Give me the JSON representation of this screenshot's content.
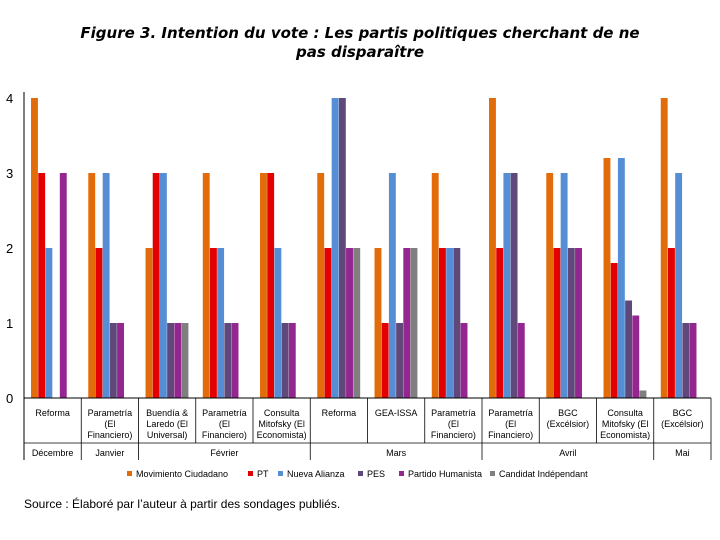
{
  "chart_data": {
    "type": "bar",
    "title": "Figure 3. Intention du vote : Les partis politiques cherchant de ne pas disparaître",
    "title_lines": [
      "Figure 3. Intention du vote : Les partis politiques cherchant de ne",
      "pas disparaître"
    ],
    "ylim": [
      0,
      4
    ],
    "yticks": [
      "0",
      "1",
      "2",
      "3",
      "4"
    ],
    "grid": false,
    "legend_position": "bottom",
    "categories": [
      [
        "Reforma"
      ],
      [
        "Parametría",
        "(El",
        "Financiero)"
      ],
      [
        "Buendía &",
        "Laredo (El",
        "Universal)"
      ],
      [
        "Parametría",
        "(El",
        "Financiero)"
      ],
      [
        "Consulta",
        "Mitofsky (El",
        "Economista)"
      ],
      [
        "Reforma"
      ],
      [
        "GEA-ISSA"
      ],
      [
        "Parametría",
        "(El",
        "Financiero)"
      ],
      [
        "Parametría",
        "(El",
        "Financiero)"
      ],
      [
        "BGC",
        "(Excélsior)"
      ],
      [
        "Consulta",
        "Mitofsky (El",
        "Economista)"
      ],
      [
        "BGC",
        "(Excélsior)"
      ]
    ],
    "months": [
      {
        "label": "Décembre",
        "span": [
          0,
          0
        ]
      },
      {
        "label": "Janvier",
        "span": [
          1,
          1
        ]
      },
      {
        "label": "Février",
        "span": [
          2,
          4
        ]
      },
      {
        "label": "Mars",
        "span": [
          5,
          7
        ]
      },
      {
        "label": "Avril",
        "span": [
          8,
          10
        ]
      },
      {
        "label": "Mai",
        "span": [
          11,
          11
        ]
      }
    ],
    "series": [
      {
        "name": "Movimiento Ciudadano",
        "color": "#E36C0A",
        "values": [
          4,
          3,
          2,
          3,
          3,
          3,
          2,
          3,
          4,
          3,
          3.2,
          4
        ]
      },
      {
        "name": "PT",
        "color": "#E30000",
        "values": [
          3,
          2,
          3,
          2,
          3,
          2,
          1,
          2,
          2,
          2,
          1.8,
          2
        ]
      },
      {
        "name": "Nueva Alianza",
        "color": "#558ED5",
        "values": [
          2,
          3,
          3,
          2,
          2,
          4,
          3,
          2,
          3,
          3,
          3.2,
          3
        ]
      },
      {
        "name": "PES",
        "color": "#60497A",
        "values": [
          0,
          1,
          1,
          1,
          1,
          4,
          1,
          2,
          3,
          2,
          1.3,
          1
        ]
      },
      {
        "name": "Partido Humanista",
        "color": "#93268F",
        "values": [
          3,
          1,
          1,
          1,
          1,
          2,
          2,
          1,
          1,
          2,
          1.1,
          1
        ]
      },
      {
        "name": "Candidat Indépendant",
        "color": "#7F7F7F",
        "values": [
          0,
          0,
          1,
          0,
          0,
          2,
          2,
          0,
          0,
          0,
          0.1,
          0
        ]
      }
    ]
  },
  "source_note": "Source : Élaboré par l’auteur à partir des sondages publiés."
}
